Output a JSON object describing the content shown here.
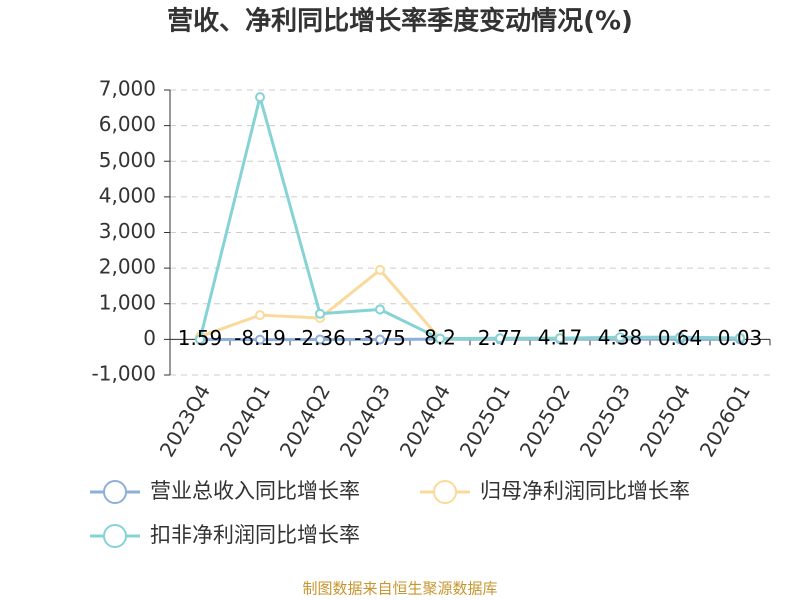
{
  "chart_data": {
    "type": "line",
    "title": "营收、净利同比增长率季度变动情况(%)",
    "categories": [
      "2023Q4",
      "2024Q1",
      "2024Q2",
      "2024Q3",
      "2024Q4",
      "2025Q1",
      "2025Q2",
      "2025Q3",
      "2025Q4",
      "2026Q1"
    ],
    "series": [
      {
        "name": "营业总收入同比增长率",
        "color": "#8eaedb",
        "values": [
          1.59,
          -8.19,
          -2.36,
          -3.75,
          8.2,
          2.77,
          4.17,
          4.38,
          0.64,
          0.03
        ],
        "data_labels": true
      },
      {
        "name": "归母净利润同比增长率",
        "color": "#fad99b",
        "values": [
          80,
          680,
          600,
          1950,
          20,
          30,
          40,
          50,
          60,
          40
        ]
      },
      {
        "name": "扣非净利润同比增长率",
        "color": "#86d3d6",
        "values": [
          0,
          6800,
          720,
          840,
          20,
          30,
          30,
          60,
          60,
          40
        ]
      }
    ],
    "ylim": [
      -1000,
      7000
    ],
    "yticks": [
      {
        "value": -1000,
        "label": "-1,000"
      },
      0,
      {
        "value": 1000,
        "label": "1,000"
      },
      {
        "value": 2000,
        "label": "2,000"
      },
      {
        "value": 3000,
        "label": "3,000"
      },
      {
        "value": 4000,
        "label": "4,000"
      },
      {
        "value": 5000,
        "label": "5,000"
      },
      {
        "value": 6000,
        "label": "6,000"
      },
      {
        "value": 7000,
        "label": "7,000"
      }
    ],
    "grid": true,
    "source": "制图数据来自恒生聚源数据库"
  }
}
